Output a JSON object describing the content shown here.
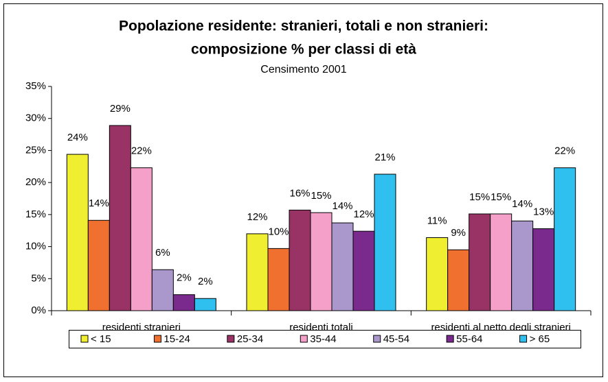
{
  "chart_data": {
    "type": "bar",
    "title": [
      "Popolazione residente: stranieri, totali e non stranieri:",
      "composizione % per classi di età"
    ],
    "subtitle": "Censimento 2001",
    "categories": [
      "residenti stranieri",
      "residenti totali",
      "residenti al netto degli stranieri"
    ],
    "series": [
      {
        "name": "< 15",
        "color": "#f0ee30",
        "values": [
          24.4,
          12.0,
          11.4
        ],
        "value_labels": [
          "24%",
          "12%",
          "11%"
        ]
      },
      {
        "name": "15-24",
        "color": "#f07030",
        "values": [
          14.1,
          9.7,
          9.5
        ],
        "value_labels": [
          "14%",
          "10%",
          "9%"
        ]
      },
      {
        "name": "25-34",
        "color": "#993366",
        "values": [
          28.9,
          15.7,
          15.1
        ],
        "value_labels": [
          "29%",
          "16%",
          "15%"
        ]
      },
      {
        "name": "35-44",
        "color": "#f4a0c8",
        "values": [
          22.3,
          15.3,
          15.1
        ],
        "value_labels": [
          "22%",
          "15%",
          "15%"
        ]
      },
      {
        "name": "45-54",
        "color": "#aa98cc",
        "values": [
          6.4,
          13.7,
          14.0
        ],
        "value_labels": [
          "6%",
          "14%",
          "14%"
        ]
      },
      {
        "name": "55-64",
        "color": "#7a2a8c",
        "values": [
          2.5,
          12.4,
          12.8
        ],
        "value_labels": [
          "2%",
          "12%",
          "13%"
        ]
      },
      {
        "name": "> 65",
        "color": "#30c0f0",
        "values": [
          1.9,
          21.3,
          22.3
        ],
        "value_labels": [
          "2%",
          "21%",
          "22%"
        ]
      }
    ],
    "ylim": [
      0,
      35
    ],
    "yticks": [
      {
        "value": 0,
        "label": "0%"
      },
      {
        "value": 5,
        "label": "5%"
      },
      {
        "value": 10,
        "label": "10%"
      },
      {
        "value": 15,
        "label": "15%"
      },
      {
        "value": 20,
        "label": "20%"
      },
      {
        "value": 25,
        "label": "25%"
      },
      {
        "value": 30,
        "label": "30%"
      },
      {
        "value": 35,
        "label": "35%"
      }
    ],
    "legend": "bottom"
  }
}
